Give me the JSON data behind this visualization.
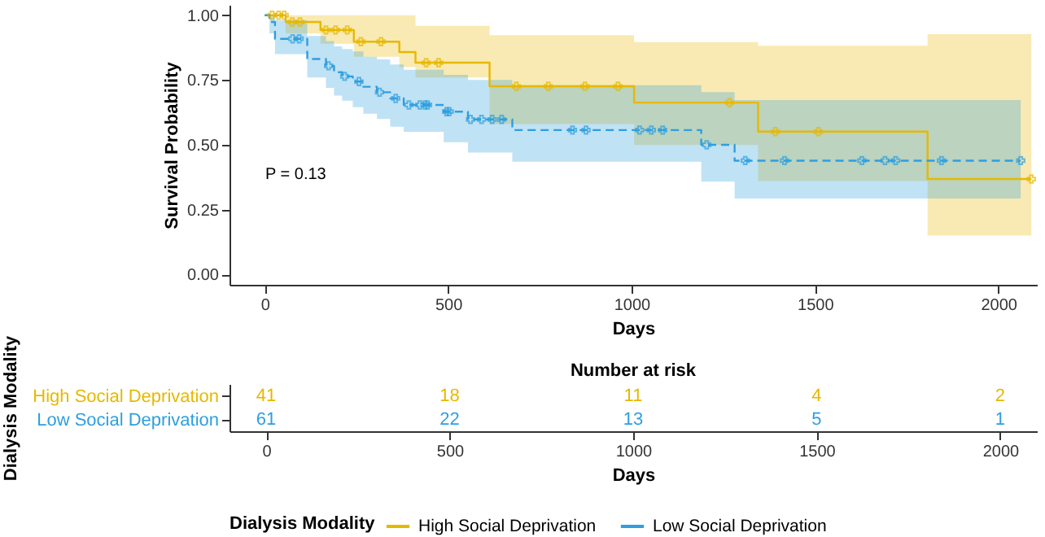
{
  "chart_data": [
    {
      "type": "step",
      "xlabel": "Days",
      "ylabel": "Survival Probability",
      "legend_title": "Dialysis Modality",
      "legend": "bottom",
      "annotations": [
        "P = 0.13"
      ],
      "xlim": [
        -96,
        2105
      ],
      "ylim": [
        -0.04,
        1.04
      ],
      "xticks": [
        0,
        500,
        1000,
        1500,
        2000
      ],
      "yticks": [
        {
          "value": 0,
          "label": "0.00"
        },
        {
          "value": 0.25,
          "label": "0.25"
        },
        {
          "value": 0.5,
          "label": "0.50"
        },
        {
          "value": 0.75,
          "label": "0.75"
        },
        {
          "value": 1,
          "label": "1.00"
        }
      ],
      "series": [
        {
          "name": "High Social Deprivation",
          "color": "#e7b800",
          "line_style": "solid",
          "x": [
            0,
            57,
            152,
            243,
            367,
            411,
            613,
            1007,
            1345,
            1807,
            2090
          ],
          "values": [
            1,
            0.974,
            0.943,
            0.898,
            0.858,
            0.817,
            0.726,
            0.663,
            0.551,
            0.368,
            0.368
          ],
          "lower": [
            1,
            0.93,
            0.89,
            0.84,
            0.8,
            0.76,
            0.58,
            0.5,
            0.36,
            0.15,
            0.15
          ],
          "upper": [
            1,
            1,
            1,
            1,
            1,
            0.959,
            0.923,
            0.896,
            0.882,
            0.927,
            0.927
          ]
        },
        {
          "name": "Low Social Deprivation",
          "color": "#2e9fdf",
          "line_style": "dashed",
          "x": [
            0,
            13,
            28,
            116,
            167,
            189,
            211,
            240,
            269,
            306,
            342,
            379,
            488,
            554,
            675,
            1190,
            1281,
            2061
          ],
          "values": [
            1,
            0.974,
            0.909,
            0.831,
            0.805,
            0.78,
            0.764,
            0.744,
            0.724,
            0.703,
            0.679,
            0.654,
            0.628,
            0.598,
            0.557,
            0.5,
            0.439,
            0.439
          ],
          "lower": [
            1,
            0.93,
            0.85,
            0.76,
            0.72,
            0.69,
            0.67,
            0.645,
            0.62,
            0.6,
            0.57,
            0.55,
            0.51,
            0.47,
            0.435,
            0.358,
            0.293,
            0.293
          ],
          "upper": [
            1,
            1,
            0.98,
            0.92,
            0.9,
            0.88,
            0.87,
            0.86,
            0.84,
            0.83,
            0.81,
            0.79,
            0.77,
            0.75,
            0.73,
            0.703,
            0.673,
            0.673
          ]
        },
        {
          "type": "scatter",
          "marker": "cross",
          "color": "#e7b800",
          "x": [
            20,
            38,
            53,
            75,
            96,
            167,
            193,
            225,
            262,
            317,
            440,
            474,
            686,
            773,
            873,
            963,
            1267,
            1392,
            1509,
            2090
          ],
          "values": [
            1,
            1,
            1,
            0.974,
            0.974,
            0.943,
            0.943,
            0.943,
            0.898,
            0.898,
            0.817,
            0.817,
            0.726,
            0.726,
            0.726,
            0.726,
            0.663,
            0.551,
            0.551,
            0.368
          ]
        },
        {
          "type": "scatter",
          "marker": "cross",
          "color": "#2e9fdf",
          "x": [
            76,
            94,
            174,
            218,
            257,
            313,
            357,
            393,
            423,
            437,
            444,
            496,
            503,
            561,
            591,
            620,
            646,
            839,
            876,
            1022,
            1054,
            1085,
            1205,
            1310,
            1417,
            1628,
            1691,
            1720,
            1845,
            2061
          ],
          "values": [
            0.909,
            0.909,
            0.805,
            0.764,
            0.744,
            0.703,
            0.679,
            0.654,
            0.654,
            0.654,
            0.654,
            0.628,
            0.628,
            0.598,
            0.598,
            0.598,
            0.598,
            0.557,
            0.557,
            0.557,
            0.557,
            0.557,
            0.5,
            0.439,
            0.439,
            0.439,
            0.439,
            0.439,
            0.439,
            0.439
          ]
        }
      ]
    },
    {
      "type": "heatmap",
      "title": "Number at risk",
      "xlabel": "Days",
      "ylabel": "Dialysis Modality",
      "data_labels": true,
      "categories": [
        "0",
        "500",
        "1000",
        "1500",
        "2000"
      ],
      "y_categories": [
        "High Social Deprivation",
        "Low Social Deprivation"
      ],
      "colors": [
        "#e7b800",
        "#2e9fdf"
      ],
      "cells": [
        [
          41,
          18,
          11,
          4,
          2
        ],
        [
          61,
          22,
          13,
          5,
          1
        ]
      ]
    }
  ]
}
